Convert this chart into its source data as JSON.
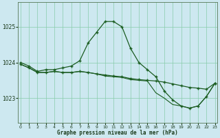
{
  "title": "Graphe pression niveau de la mer (hPa)",
  "background_color": "#cde8f0",
  "grid_color": "#88ccaa",
  "line_color": "#1a5c20",
  "x_ticks": [
    0,
    1,
    2,
    3,
    4,
    5,
    6,
    7,
    8,
    9,
    10,
    11,
    12,
    13,
    14,
    15,
    16,
    17,
    18,
    19,
    20,
    21,
    22,
    23
  ],
  "y_ticks": [
    1023,
    1024,
    1025
  ],
  "ylim": [
    1022.3,
    1025.7
  ],
  "xlim": [
    -0.3,
    23.3
  ],
  "series1": [
    1024.0,
    1023.9,
    1023.75,
    1023.8,
    1023.8,
    1023.85,
    1023.9,
    1024.05,
    1024.55,
    1024.85,
    1025.15,
    1025.15,
    1025.0,
    1024.4,
    1024.0,
    1023.8,
    1023.6,
    1023.2,
    1022.95,
    1022.78,
    1022.72,
    1022.78,
    1023.05,
    1023.42
  ],
  "series2": [
    1023.95,
    1023.85,
    1023.72,
    1023.72,
    1023.75,
    1023.72,
    1023.72,
    1023.75,
    1023.72,
    1023.68,
    1023.65,
    1023.62,
    1023.6,
    1023.55,
    1023.52,
    1023.5,
    1023.48,
    1023.45,
    1023.4,
    1023.35,
    1023.3,
    1023.28,
    1023.25,
    1023.42
  ],
  "series3": [
    1023.95,
    1023.85,
    1023.72,
    1023.72,
    1023.75,
    1023.72,
    1023.72,
    1023.75,
    1023.72,
    1023.68,
    1023.62,
    1023.6,
    1023.58,
    1023.52,
    1023.5,
    1023.48,
    1023.15,
    1023.0,
    1022.82,
    1022.78,
    1022.72,
    1022.78,
    1023.05,
    1023.42
  ]
}
